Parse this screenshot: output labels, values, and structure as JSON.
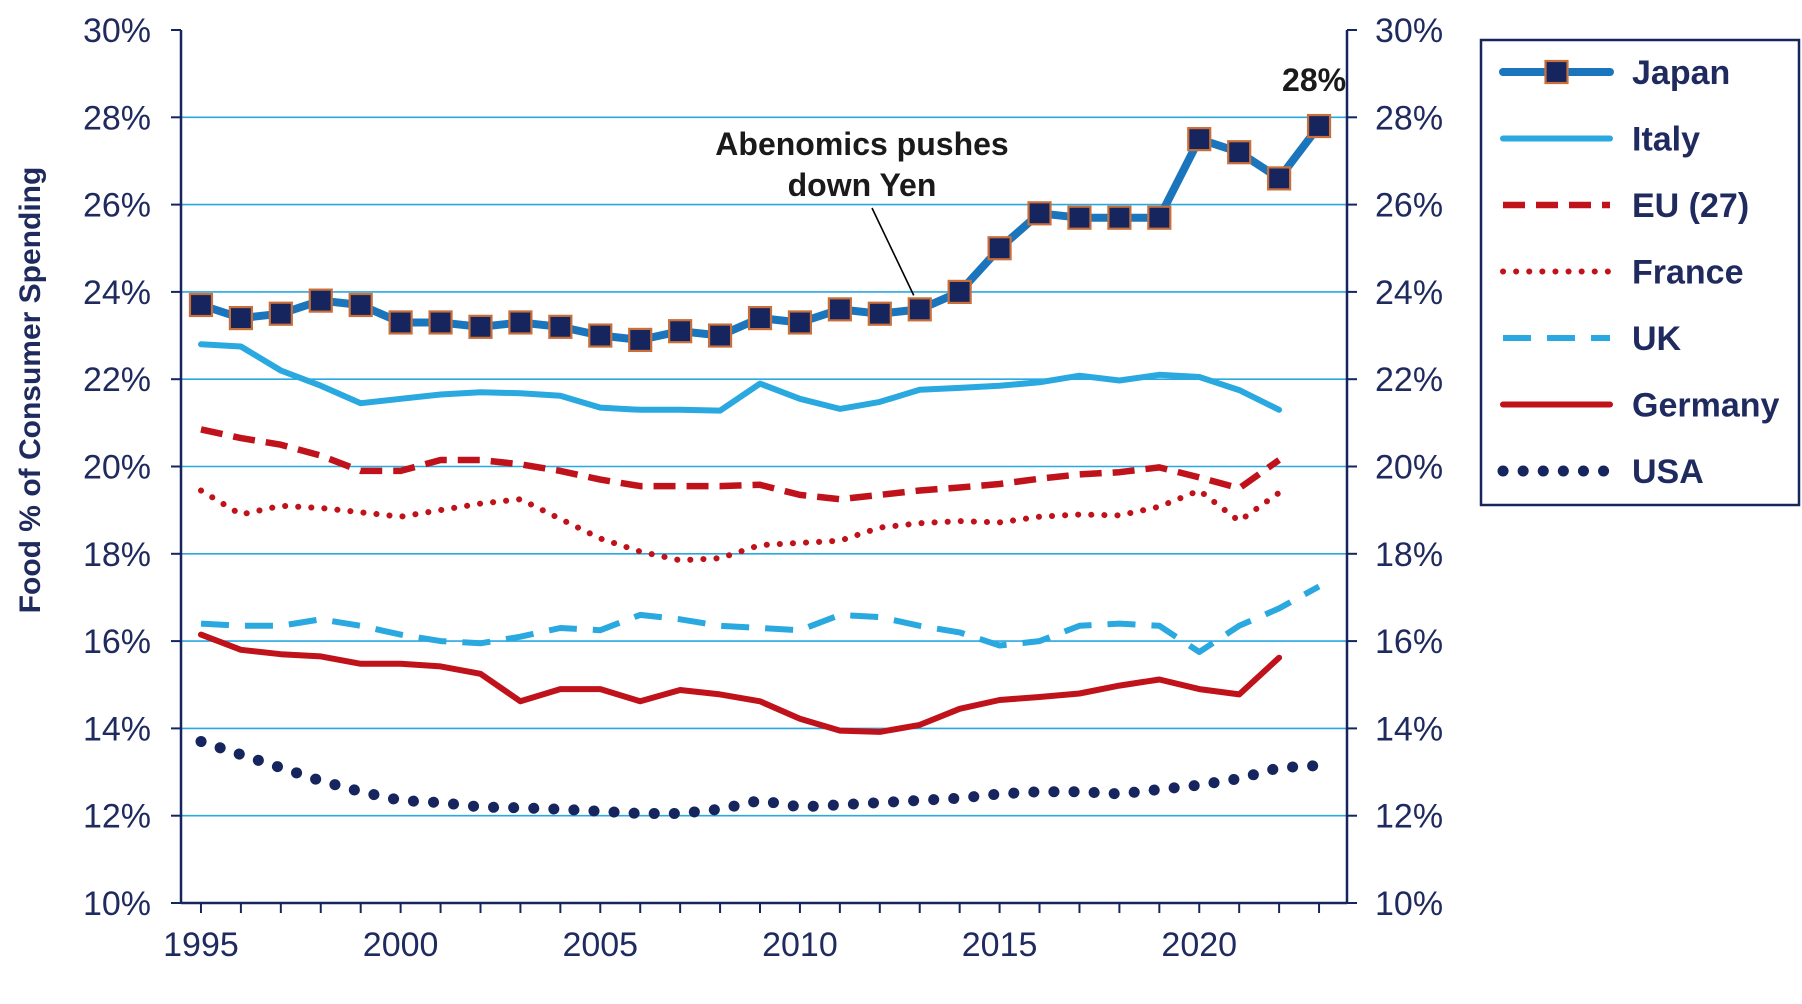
{
  "chart_data": {
    "type": "line",
    "title": "",
    "xlabel": "",
    "ylabel": "Food % of Consumer Spending",
    "xlim": [
      1994.5,
      2023.7
    ],
    "ylim": [
      10,
      30
    ],
    "x_ticks": [
      1995,
      2000,
      2005,
      2010,
      2015,
      2020
    ],
    "y_ticks": [
      10,
      12,
      14,
      16,
      18,
      20,
      22,
      24,
      26,
      28,
      30
    ],
    "y_tick_labels": [
      "10%",
      "12%",
      "14%",
      "16%",
      "18%",
      "20%",
      "22%",
      "24%",
      "26%",
      "28%",
      "30%"
    ],
    "grid": true,
    "legend_position": "right",
    "series": [
      {
        "name": "Japan",
        "style": "line-square-markers",
        "color": "#1b75bc",
        "marker_color": "#17255f",
        "marker_edge": "#c9703a",
        "x": [
          1995,
          1996,
          1997,
          1998,
          1999,
          2000,
          2001,
          2002,
          2003,
          2004,
          2005,
          2006,
          2007,
          2008,
          2009,
          2010,
          2011,
          2012,
          2013,
          2014,
          2015,
          2016,
          2017,
          2018,
          2019,
          2020,
          2021,
          2022,
          2023
        ],
        "values": [
          23.7,
          23.4,
          23.5,
          23.8,
          23.7,
          23.3,
          23.3,
          23.2,
          23.3,
          23.2,
          23.0,
          22.9,
          23.1,
          23.0,
          23.4,
          23.3,
          23.6,
          23.5,
          23.6,
          24.0,
          25.0,
          25.8,
          25.7,
          25.7,
          25.7,
          27.5,
          27.2,
          26.6,
          27.8
        ]
      },
      {
        "name": "Italy",
        "style": "solid",
        "color": "#2aa8e0",
        "x": [
          1995,
          1996,
          1997,
          1998,
          1999,
          2000,
          2001,
          2002,
          2003,
          2004,
          2005,
          2006,
          2007,
          2008,
          2009,
          2010,
          2011,
          2012,
          2013,
          2014,
          2015,
          2016,
          2017,
          2018,
          2019,
          2020,
          2021,
          2022
        ],
        "values": [
          22.8,
          22.75,
          22.2,
          21.85,
          21.45,
          21.55,
          21.65,
          21.7,
          21.68,
          21.62,
          21.35,
          21.3,
          21.3,
          21.28,
          21.9,
          21.55,
          21.32,
          21.48,
          21.76,
          21.8,
          21.85,
          21.93,
          22.08,
          21.97,
          22.1,
          22.05,
          21.75,
          21.3
        ]
      },
      {
        "name": "EU (27)",
        "style": "dashed",
        "color": "#c0121a",
        "x": [
          1995,
          1996,
          1997,
          1998,
          1999,
          2000,
          2001,
          2002,
          2003,
          2004,
          2005,
          2006,
          2007,
          2008,
          2009,
          2010,
          2011,
          2012,
          2013,
          2014,
          2015,
          2016,
          2017,
          2018,
          2019,
          2020,
          2021,
          2022
        ],
        "values": [
          20.85,
          20.65,
          20.5,
          20.25,
          19.9,
          19.9,
          20.15,
          20.15,
          20.05,
          19.9,
          19.7,
          19.55,
          19.55,
          19.55,
          19.58,
          19.35,
          19.25,
          19.35,
          19.45,
          19.52,
          19.6,
          19.72,
          19.82,
          19.87,
          19.98,
          19.75,
          19.5,
          20.15
        ]
      },
      {
        "name": "France",
        "style": "dotted",
        "color": "#c0121a",
        "x": [
          1995,
          1996,
          1997,
          1998,
          1999,
          2000,
          2001,
          2002,
          2003,
          2004,
          2005,
          2006,
          2007,
          2008,
          2009,
          2010,
          2011,
          2012,
          2013,
          2014,
          2015,
          2016,
          2017,
          2018,
          2019,
          2020,
          2021,
          2022
        ],
        "values": [
          19.45,
          18.9,
          19.1,
          19.05,
          18.95,
          18.85,
          19.0,
          19.15,
          19.25,
          18.8,
          18.35,
          18.05,
          17.85,
          17.9,
          18.2,
          18.25,
          18.3,
          18.6,
          18.7,
          18.75,
          18.72,
          18.85,
          18.9,
          18.88,
          19.08,
          19.45,
          18.75,
          19.4
        ]
      },
      {
        "name": "UK",
        "style": "long-dashed",
        "color": "#2aa8e0",
        "x": [
          1995,
          1996,
          1997,
          1998,
          1999,
          2000,
          2001,
          2002,
          2003,
          2004,
          2005,
          2006,
          2007,
          2008,
          2009,
          2010,
          2011,
          2012,
          2013,
          2014,
          2015,
          2016,
          2017,
          2018,
          2019,
          2020,
          2021,
          2022,
          2023
        ],
        "values": [
          16.4,
          16.35,
          16.35,
          16.5,
          16.35,
          16.15,
          16.0,
          15.95,
          16.1,
          16.3,
          16.25,
          16.6,
          16.5,
          16.35,
          16.3,
          16.25,
          16.6,
          16.55,
          16.35,
          16.2,
          15.9,
          16.0,
          16.35,
          16.4,
          16.35,
          15.75,
          16.35,
          16.75,
          17.25
        ]
      },
      {
        "name": "Germany",
        "style": "solid",
        "color": "#c0121a",
        "x": [
          1995,
          1996,
          1997,
          1998,
          1999,
          2000,
          2001,
          2002,
          2003,
          2004,
          2005,
          2006,
          2007,
          2008,
          2009,
          2010,
          2011,
          2012,
          2013,
          2014,
          2015,
          2016,
          2017,
          2018,
          2019,
          2020,
          2021,
          2022
        ],
        "values": [
          16.15,
          15.8,
          15.7,
          15.65,
          15.48,
          15.48,
          15.42,
          15.25,
          14.62,
          14.9,
          14.9,
          14.62,
          14.88,
          14.78,
          14.62,
          14.22,
          13.95,
          13.92,
          14.08,
          14.45,
          14.65,
          14.72,
          14.8,
          14.98,
          15.12,
          14.9,
          14.78,
          15.62
        ]
      },
      {
        "name": "USA",
        "style": "round-dotted",
        "color": "#17255f",
        "x": [
          1995,
          1996,
          1997,
          1998,
          1999,
          2000,
          2001,
          2002,
          2003,
          2004,
          2005,
          2006,
          2007,
          2008,
          2009,
          2010,
          2011,
          2012,
          2013,
          2014,
          2015,
          2016,
          2017,
          2018,
          2019,
          2020,
          2021,
          2022,
          2023
        ],
        "values": [
          13.7,
          13.4,
          13.1,
          12.8,
          12.55,
          12.35,
          12.3,
          12.2,
          12.18,
          12.15,
          12.1,
          12.05,
          12.05,
          12.15,
          12.35,
          12.2,
          12.25,
          12.3,
          12.35,
          12.4,
          12.5,
          12.55,
          12.55,
          12.5,
          12.6,
          12.7,
          12.85,
          13.1,
          13.15
        ]
      }
    ],
    "annotations": [
      {
        "text_lines": [
          "Abenomics pushes",
          "down Yen"
        ],
        "points_to": {
          "x": 2013,
          "y": 23.6
        }
      },
      {
        "text": "28%",
        "points_to": {
          "x": 2023,
          "y": 27.8
        }
      }
    ]
  }
}
